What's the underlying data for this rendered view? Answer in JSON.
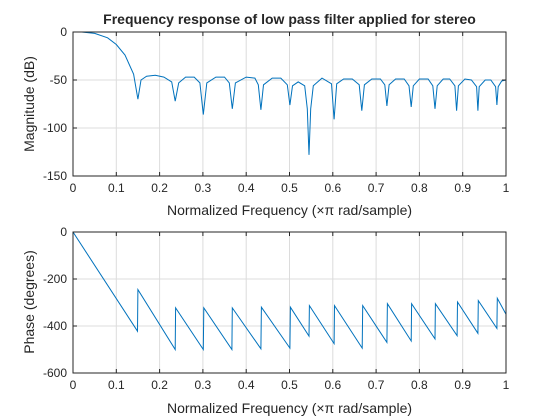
{
  "chart_data": [
    {
      "type": "line",
      "title": "Frequency response of low pass filter applied for stereo",
      "xlabel": "Normalized Frequency  (×π rad/sample)",
      "ylabel": "Magnitude (dB)",
      "xlim": [
        0,
        1
      ],
      "ylim": [
        -150,
        0
      ],
      "grid": true,
      "line_color": "#0072bd",
      "xticks": [
        0,
        0.1,
        0.2,
        0.3,
        0.4,
        0.5,
        0.6,
        0.7,
        0.8,
        0.9,
        1
      ],
      "xtick_labels": [
        "0",
        "0.1",
        "0.2",
        "0.3",
        "0.4",
        "0.5",
        "0.6",
        "0.7",
        "0.8",
        "0.9",
        "1"
      ],
      "yticks": [
        0,
        -50,
        -100,
        -150
      ],
      "ytick_labels": [
        "0",
        "-50",
        "-100",
        "-150"
      ],
      "series": [
        {
          "x": [
            0,
            0.02,
            0.05,
            0.08,
            0.1,
            0.12,
            0.14,
            0.15,
            0.157,
            0.17,
            0.19,
            0.21,
            0.228,
            0.236,
            0.244,
            0.26,
            0.28,
            0.293,
            0.301,
            0.309,
            0.33,
            0.35,
            0.361,
            0.368,
            0.375,
            0.4,
            0.42,
            0.428,
            0.434,
            0.44,
            0.46,
            0.48,
            0.495,
            0.501,
            0.507,
            0.52,
            0.535,
            0.541,
            0.545,
            0.549,
            0.555,
            0.575,
            0.597,
            0.603,
            0.609,
            0.625,
            0.645,
            0.661,
            0.667,
            0.673,
            0.69,
            0.71,
            0.72,
            0.725,
            0.73,
            0.745,
            0.765,
            0.776,
            0.781,
            0.786,
            0.8,
            0.82,
            0.831,
            0.836,
            0.841,
            0.855,
            0.87,
            0.882,
            0.886,
            0.89,
            0.905,
            0.92,
            0.932,
            0.935,
            0.938,
            0.952,
            0.965,
            0.976,
            0.979,
            0.982,
            0.99,
            1
          ],
          "y": [
            0,
            0,
            -1.5,
            -6,
            -13,
            -24,
            -44,
            -70,
            -50,
            -46,
            -45,
            -47,
            -52,
            -72,
            -53,
            -47,
            -47,
            -53,
            -86,
            -53,
            -47,
            -47,
            -53,
            -80,
            -53,
            -47,
            -48,
            -55,
            -81,
            -55,
            -48,
            -48,
            -55,
            -76,
            -56,
            -52,
            -56,
            -80,
            -128,
            -80,
            -56,
            -48,
            -54,
            -91,
            -54,
            -49,
            -49,
            -55,
            -82,
            -55,
            -49,
            -49,
            -55,
            -77,
            -55,
            -49,
            -49,
            -56,
            -78,
            -56,
            -49,
            -49,
            -56,
            -80,
            -56,
            -49,
            -49,
            -56,
            -82,
            -56,
            -49,
            -50,
            -57,
            -82,
            -57,
            -50,
            -50,
            -57,
            -76,
            -57,
            -51,
            -50
          ]
        }
      ]
    },
    {
      "type": "line",
      "title": "",
      "xlabel": "Normalized Frequency  (×π rad/sample)",
      "ylabel": "Phase (degrees)",
      "xlim": [
        0,
        1
      ],
      "ylim": [
        -600,
        0
      ],
      "grid": true,
      "line_color": "#0072bd",
      "xticks": [
        0,
        0.1,
        0.2,
        0.3,
        0.4,
        0.5,
        0.6,
        0.7,
        0.8,
        0.9,
        1
      ],
      "xtick_labels": [
        "0",
        "0.1",
        "0.2",
        "0.3",
        "0.4",
        "0.5",
        "0.6",
        "0.7",
        "0.8",
        "0.9",
        "1"
      ],
      "yticks": [
        0,
        -200,
        -400,
        -600
      ],
      "ytick_labels": [
        "0",
        "-200",
        "-400",
        "-600"
      ],
      "series": [
        {
          "x": [
            0,
            0.149,
            0.15,
            0.236,
            0.237,
            0.301,
            0.302,
            0.367,
            0.368,
            0.434,
            0.435,
            0.501,
            0.502,
            0.545,
            0.546,
            0.603,
            0.604,
            0.668,
            0.669,
            0.725,
            0.726,
            0.781,
            0.782,
            0.836,
            0.837,
            0.887,
            0.888,
            0.935,
            0.936,
            0.979,
            0.98,
            1
          ],
          "y": [
            0,
            -422,
            -245,
            -500,
            -323,
            -500,
            -323,
            -500,
            -323,
            -497,
            -320,
            -494,
            -320,
            -443,
            -313,
            -475,
            -313,
            -494,
            -313,
            -470,
            -305,
            -464,
            -305,
            -455,
            -305,
            -441,
            -298,
            -431,
            -292,
            -410,
            -282,
            -350
          ]
        }
      ]
    }
  ]
}
